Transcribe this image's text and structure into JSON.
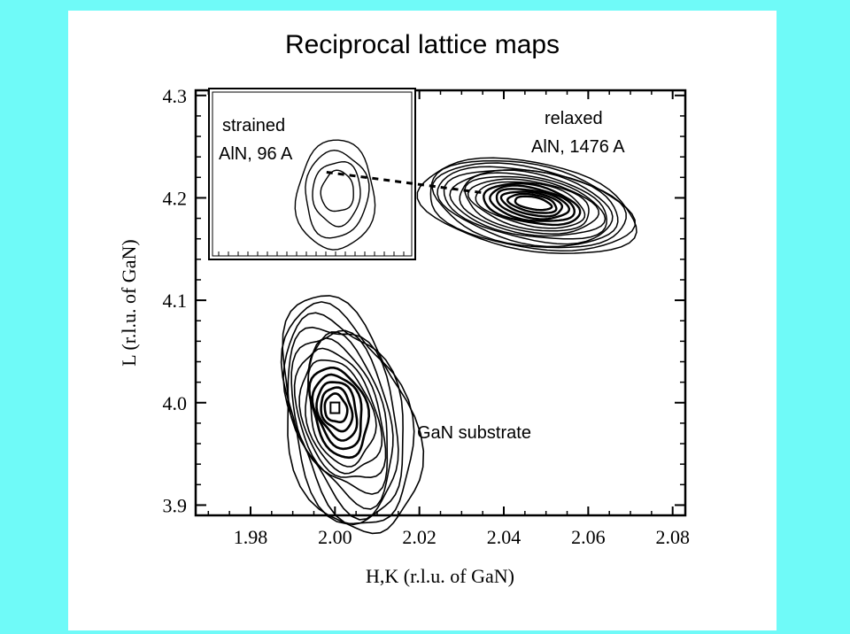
{
  "slide": {
    "title": "Reciprocal lattice maps",
    "background_color": "#6ffaf8",
    "panel_color": "#ffffff"
  },
  "chart_data": {
    "type": "contour",
    "xlabel": "H,K (r.l.u. of GaN)",
    "ylabel": "L (r.l.u. of GaN)",
    "xlim": [
      1.967,
      2.083
    ],
    "ylim": [
      3.89,
      4.305
    ],
    "xticks": [
      "1.98",
      "2.00",
      "2.02",
      "2.04",
      "2.06",
      "2.08"
    ],
    "yticks": [
      "3.9",
      "4.0",
      "4.1",
      "4.2",
      "4.3"
    ],
    "xtick_values": [
      1.98,
      2.0,
      2.02,
      2.04,
      2.06,
      2.08
    ],
    "ytick_values": [
      3.9,
      4.0,
      4.1,
      4.2,
      4.3
    ],
    "peaks": [
      {
        "label": "GaN substrate",
        "center": [
          2.0,
          3.995
        ],
        "contour_levels": 14
      },
      {
        "label_line1": "relaxed",
        "label_line2": "AlN, 1476 A",
        "center": [
          2.047,
          4.195
        ],
        "contour_levels": 16
      }
    ],
    "inset": {
      "label_line1": "strained",
      "label_line2": "AlN, 96 A",
      "contour_levels": 4
    },
    "dashed_line": [
      [
        1.998,
        4.225
      ],
      [
        2.035,
        4.205
      ]
    ]
  }
}
